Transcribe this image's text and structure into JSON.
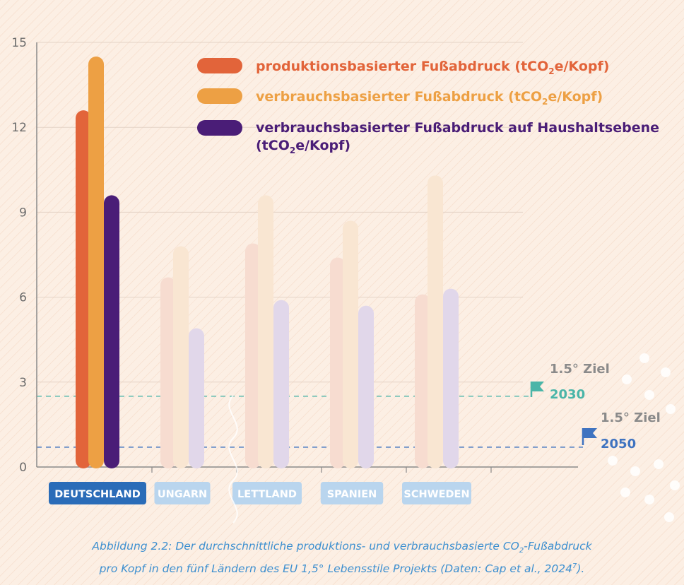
{
  "chart_data": {
    "type": "bar",
    "categories": [
      "DEUTSCHLAND",
      "UNGARN",
      "LETTLAND",
      "SPANIEN",
      "SCHWEDEN"
    ],
    "highlighted_category": "DEUTSCHLAND",
    "series": [
      {
        "name": "produktionsbasierter Fußabdruck (tCO₂e/Kopf)",
        "color": "#e2643a",
        "faded_color": "#f7dcd0",
        "values": [
          12.6,
          6.7,
          7.9,
          7.4,
          6.1
        ]
      },
      {
        "name": "verbrauchsbasierter Fußabdruck (tCO₂e/Kopf)",
        "color": "#eda044",
        "faded_color": "#f9e6d2",
        "values": [
          14.5,
          7.8,
          9.6,
          8.7,
          10.3
        ]
      },
      {
        "name": "verbrauchsbasierter Fußabdruck auf Haushaltsebene (tCO₂e/Kopf)",
        "color": "#4a1d77",
        "faded_color": "#e1d7ea",
        "values": [
          9.6,
          4.9,
          5.9,
          5.7,
          6.3
        ]
      }
    ],
    "y_ticks": [
      "0",
      "3",
      "6",
      "9",
      "12",
      "15"
    ],
    "ylim": [
      0,
      15
    ],
    "grid": true,
    "legend_position": "top-right",
    "reference_lines": [
      {
        "label": "1.5° Ziel",
        "year": "2030",
        "value": 2.5,
        "color": "#4ab5a8"
      },
      {
        "label": "1.5° Ziel",
        "year": "2050",
        "value": 0.7,
        "color": "#3f73c0"
      }
    ],
    "category_label_colors": {
      "highlight": "#2a6cb8",
      "faded": "#b9d5ee"
    }
  },
  "legend": {
    "item1_main": "produktionsbasierter Fußabdruck (tCO",
    "item1_sub": "2",
    "item1_tail": "e/Kopf)",
    "item2_main": "verbrauchsbasierter Fußabdruck (tCO",
    "item2_sub": "2",
    "item2_tail": "e/Kopf)",
    "item3_line1": "verbrauchsbasierter Fußabdruck auf Haushaltsebene",
    "item3_line2_main": "(tCO",
    "item3_line2_sub": "2",
    "item3_line2_tail": "e/Kopf)"
  },
  "targets": {
    "t2030_label": "1.5° Ziel",
    "t2030_year": "2030",
    "t2050_label": "1.5° Ziel",
    "t2050_year": "2050"
  },
  "caption": {
    "line1_main": "Abbildung 2.2: Der durchschnittliche produktions- und verbrauchsbasierte CO",
    "line1_sub": "2",
    "line1_tail": "-Fußabdruck",
    "line2_main": "pro Kopf in den fünf Ländern des EU 1,5° Lebensstile Projekts (Daten: Cap et al., 2024",
    "line2_sup": "7",
    "line2_tail": ")."
  }
}
